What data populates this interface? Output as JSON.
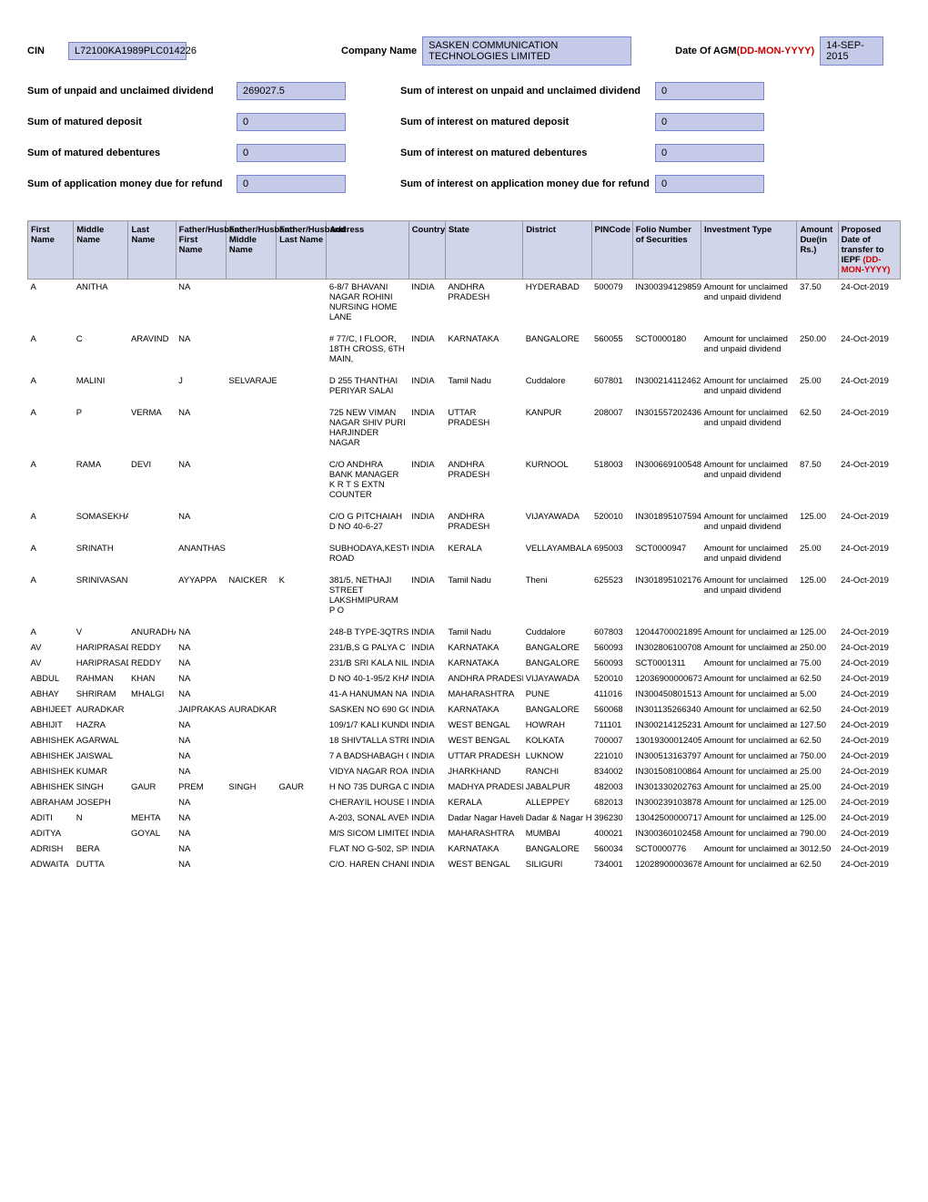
{
  "header": {
    "cin_label": "CIN",
    "cin_value": "L72100KA1989PLC014226",
    "company_label": "Company Name",
    "company_value": "SASKEN COMMUNICATION TECHNOLOGIES LIMITED",
    "agm_label": "Date Of AGM",
    "agm_hint": "(DD-MON-YYYY)",
    "agm_value": "14-SEP-2015",
    "rows": [
      {
        "left_label": "Sum of unpaid and unclaimed dividend",
        "left_value": "269027.5",
        "right_label": "Sum of interest on unpaid and unclaimed dividend",
        "right_value": "0"
      },
      {
        "left_label": "Sum of matured deposit",
        "left_value": "0",
        "right_label": "Sum of interest on matured deposit",
        "right_value": "0"
      },
      {
        "left_label": "Sum of matured debentures",
        "left_value": "0",
        "right_label": "Sum of interest on matured debentures",
        "right_value": "0"
      },
      {
        "left_label": "Sum of application money due for refund",
        "left_value": "0",
        "right_label": "Sum of interest on application money due for refund",
        "right_value": "0"
      }
    ]
  },
  "table": {
    "headers": {
      "first_name": "First Name",
      "middle_name": "Middle Name",
      "last_name": "Last Name",
      "f_first": "Father/Husband First Name",
      "f_middle": "Father/Husband Middle Name",
      "f_last": "Father/Husband Last Name",
      "address": "Address",
      "country": "Country",
      "state": "State",
      "district": "District",
      "pincode": "PINCode",
      "folio": "Folio Number of Securities",
      "invtype": "Investment Type",
      "amount": "Amount Due(in Rs.)",
      "date_main": "Proposed Date of transfer to IEPF",
      "date_hint": "(DD-MON-YYYY)"
    },
    "tall_rows": [
      {
        "fn": "A",
        "mn": "ANITHA",
        "ln": "",
        "ffn": "NA",
        "fmn": "",
        "fln": "",
        "addr": "6-8/7 BHAVANI NAGAR ROHINI NURSING HOME LANE",
        "country": "INDIA",
        "state": "ANDHRA PRADESH",
        "district": "HYDERABAD",
        "pin": "500079",
        "folio": "IN30039412985929",
        "invtype": "Amount for unclaimed and unpaid dividend",
        "amount": "37.50",
        "date": "24-Oct-2019"
      },
      {
        "fn": "A",
        "mn": "C",
        "ln": "ARAVIND",
        "ffn": "NA",
        "fmn": "",
        "fln": "",
        "addr": "# 77/C, I FLOOR, 18TH CROSS, 6TH MAIN,",
        "country": "INDIA",
        "state": "KARNATAKA",
        "district": "BANGALORE",
        "pin": "560055",
        "folio": "SCT0000180",
        "invtype": "Amount for unclaimed and unpaid dividend",
        "amount": "250.00",
        "date": "24-Oct-2019"
      },
      {
        "fn": "A",
        "mn": "MALINI",
        "ln": "",
        "ffn": "J",
        "fmn": "SELVARAJEN",
        "fln": "",
        "addr": "D 255 THANTHAI PERIYAR SALAI",
        "country": "INDIA",
        "state": "Tamil Nadu",
        "district": "Cuddalore",
        "pin": "607801",
        "folio": "IN30021411246278",
        "invtype": "Amount for unclaimed and unpaid dividend",
        "amount": "25.00",
        "date": "24-Oct-2019"
      },
      {
        "fn": "A",
        "mn": "P",
        "ln": "VERMA",
        "ffn": "NA",
        "fmn": "",
        "fln": "",
        "addr": "725 NEW VIMAN NAGAR SHIV PURI HARJINDER NAGAR",
        "country": "INDIA",
        "state": "UTTAR PRADESH",
        "district": "KANPUR",
        "pin": "208007",
        "folio": "IN30155720243601",
        "invtype": "Amount for unclaimed and unpaid dividend",
        "amount": "62.50",
        "date": "24-Oct-2019"
      },
      {
        "fn": "A",
        "mn": "RAMA",
        "ln": "DEVI",
        "ffn": "NA",
        "fmn": "",
        "fln": "",
        "addr": "C/O ANDHRA BANK MANAGER K R T S EXTN COUNTER",
        "country": "INDIA",
        "state": "ANDHRA PRADESH",
        "district": "KURNOOL",
        "pin": "518003",
        "folio": "IN30066910054815",
        "invtype": "Amount for unclaimed and unpaid dividend",
        "amount": "87.50",
        "date": "24-Oct-2019"
      },
      {
        "fn": "A",
        "mn": "SOMASEKHAR",
        "ln": "",
        "ffn": "NA",
        "fmn": "",
        "fln": "",
        "addr": "C/O G PITCHAIAH D NO 40-6-27",
        "country": "INDIA",
        "state": "ANDHRA PRADESH",
        "district": "VIJAYAWADA",
        "pin": "520010",
        "folio": "IN30189510759413",
        "invtype": "Amount for unclaimed and unpaid dividend",
        "amount": "125.00",
        "date": "24-Oct-2019"
      },
      {
        "fn": "A",
        "mn": "SRINATH",
        "ln": "",
        "ffn": "ANANTHASWAMY",
        "fmn": "",
        "fln": "",
        "addr": "SUBHODAYA,KESTON ROAD",
        "country": "INDIA",
        "state": "KERALA",
        "district": "VELLAYAMBALAM",
        "pin": "695003",
        "folio": "SCT0000947",
        "invtype": "Amount for unclaimed and unpaid dividend",
        "amount": "25.00",
        "date": "24-Oct-2019"
      },
      {
        "fn": "A",
        "mn": "SRINIVASAN",
        "ln": "",
        "ffn": "AYYAPPA",
        "fmn": "NAICKER",
        "fln": "K",
        "addr": "381/5, NETHAJI STREET LAKSHMIPURAM P O",
        "country": "INDIA",
        "state": "Tamil Nadu",
        "district": "Theni",
        "pin": "625523",
        "folio": "IN30189510217670",
        "invtype": "Amount for unclaimed and unpaid dividend",
        "amount": "125.00",
        "date": "24-Oct-2019"
      }
    ],
    "compact_rows": [
      {
        "fn": "A",
        "mn": "V",
        "ln": "ANURADHA",
        "ffn": "NA",
        "fmn": "",
        "fln": "",
        "addr": "248-B TYPE-3QTRS B",
        "country": "INDIA",
        "state": "Tamil Nadu",
        "district": "Cuddalore",
        "pin": "607803",
        "folio": "12044700021895",
        "invtype": "Amount for unclaimed an",
        "amount": "125.00",
        "date": "24-Oct-2019"
      },
      {
        "fn": "AV",
        "mn": "HARIPRASAD",
        "ln": "REDDY",
        "ffn": "NA",
        "fmn": "",
        "fln": "",
        "addr": "231/B,S G PALYA C V",
        "country": "INDIA",
        "state": "KARNATAKA",
        "district": "BANGALORE",
        "pin": "560093",
        "folio": "IN302806100708",
        "invtype": "Amount for unclaimed an",
        "amount": "250.00",
        "date": "24-Oct-2019"
      },
      {
        "fn": "AV",
        "mn": "HARIPRASAD",
        "ln": "REDDY",
        "ffn": "NA",
        "fmn": "",
        "fln": "",
        "addr": "231/B SRI KALA NILA",
        "country": "INDIA",
        "state": "KARNATAKA",
        "district": "BANGALORE",
        "pin": "560093",
        "folio": "SCT0001311",
        "invtype": "Amount for unclaimed an",
        "amount": "75.00",
        "date": "24-Oct-2019"
      },
      {
        "fn": "ABDUL",
        "mn": "RAHMAN",
        "ln": "KHAN",
        "ffn": "NA",
        "fmn": "",
        "fln": "",
        "addr": "D NO 40-1-95/2 KHA",
        "country": "INDIA",
        "state": "ANDHRA PRADESH",
        "district": "VIJAYAWADA",
        "pin": "520010",
        "folio": "12036900000673",
        "invtype": "Amount for unclaimed an",
        "amount": "62.50",
        "date": "24-Oct-2019"
      },
      {
        "fn": "ABHAY",
        "mn": "SHRIRAM",
        "ln": "MHALGI",
        "ffn": "NA",
        "fmn": "",
        "fln": "",
        "addr": "41-A HANUMAN NA",
        "country": "INDIA",
        "state": "MAHARASHTRA",
        "district": "PUNE",
        "pin": "411016",
        "folio": "IN300450801513",
        "invtype": "Amount for unclaimed an",
        "amount": "5.00",
        "date": "24-Oct-2019"
      },
      {
        "fn": "ABHIJEET",
        "mn": "AURADKAR",
        "ln": "",
        "ffn": "JAIPRAKASH",
        "fmn": "AURADKAR",
        "fln": "",
        "addr": "SASKEN NO 690 GOL",
        "country": "INDIA",
        "state": "KARNATAKA",
        "district": "BANGALORE",
        "pin": "560068",
        "folio": "IN301135266340",
        "invtype": "Amount for unclaimed an",
        "amount": "62.50",
        "date": "24-Oct-2019"
      },
      {
        "fn": "ABHIJIT",
        "mn": "HAZRA",
        "ln": "",
        "ffn": "NA",
        "fmn": "",
        "fln": "",
        "addr": "109/1/7 KALI KUNDU",
        "country": "INDIA",
        "state": "WEST BENGAL",
        "district": "HOWRAH",
        "pin": "711101",
        "folio": "IN300214125231",
        "invtype": "Amount for unclaimed an",
        "amount": "127.50",
        "date": "24-Oct-2019"
      },
      {
        "fn": "ABHISHEK",
        "mn": "AGARWAL",
        "ln": "",
        "ffn": "NA",
        "fmn": "",
        "fln": "",
        "addr": "18 SHIVTALLA STREE",
        "country": "INDIA",
        "state": "WEST BENGAL",
        "district": "KOLKATA",
        "pin": "700007",
        "folio": "13019300012405",
        "invtype": "Amount for unclaimed an",
        "amount": "62.50",
        "date": "24-Oct-2019"
      },
      {
        "fn": "ABHISHEK",
        "mn": "JAISWAL",
        "ln": "",
        "ffn": "NA",
        "fmn": "",
        "fln": "",
        "addr": "7 A BADSHABAGH C",
        "country": "INDIA",
        "state": "UTTAR PRADESH",
        "district": "LUKNOW",
        "pin": "221010",
        "folio": "IN300513163797",
        "invtype": "Amount for unclaimed an",
        "amount": "750.00",
        "date": "24-Oct-2019"
      },
      {
        "fn": "ABHISHEK",
        "mn": "KUMAR",
        "ln": "",
        "ffn": "NA",
        "fmn": "",
        "fln": "",
        "addr": "VIDYA NAGAR ROAD",
        "country": "INDIA",
        "state": "JHARKHAND",
        "district": "RANCHI",
        "pin": "834002",
        "folio": "IN301508100864",
        "invtype": "Amount for unclaimed an",
        "amount": "25.00",
        "date": "24-Oct-2019"
      },
      {
        "fn": "ABHISHEK",
        "mn": "SINGH",
        "ln": "GAUR",
        "ffn": "PREM",
        "fmn": "SINGH",
        "fln": "GAUR",
        "addr": "H NO 735 DURGA CO",
        "country": "INDIA",
        "state": "MADHYA PRADESH",
        "district": "JABALPUR",
        "pin": "482003",
        "folio": "IN301330202763",
        "invtype": "Amount for unclaimed an",
        "amount": "25.00",
        "date": "24-Oct-2019"
      },
      {
        "fn": "ABRAHAM",
        "mn": "JOSEPH",
        "ln": "",
        "ffn": "NA",
        "fmn": "",
        "fln": "",
        "addr": "CHERAYIL HOUSE NE",
        "country": "INDIA",
        "state": "KERALA",
        "district": "ALLEPPEY",
        "pin": "682013",
        "folio": "IN300239103878",
        "invtype": "Amount for unclaimed an",
        "amount": "125.00",
        "date": "24-Oct-2019"
      },
      {
        "fn": "ADITI",
        "mn": "N",
        "ln": "MEHTA",
        "ffn": "NA",
        "fmn": "",
        "fln": "",
        "addr": "A-203, SONAL AVEN",
        "country": "INDIA",
        "state": "Dadar Nagar Haveli",
        "district": "Dadar & Nagar Haveli",
        "pin": "396230",
        "folio": "13042500000717",
        "invtype": "Amount for unclaimed an",
        "amount": "125.00",
        "date": "24-Oct-2019"
      },
      {
        "fn": "ADITYA",
        "mn": "",
        "ln": "GOYAL",
        "ffn": "NA",
        "fmn": "",
        "fln": "",
        "addr": "M/S SICOM LIMITED",
        "country": "INDIA",
        "state": "MAHARASHTRA",
        "district": "MUMBAI",
        "pin": "400021",
        "folio": "IN300360102458",
        "invtype": "Amount for unclaimed an",
        "amount": "790.00",
        "date": "24-Oct-2019"
      },
      {
        "fn": "ADRISH",
        "mn": "BERA",
        "ln": "",
        "ffn": "NA",
        "fmn": "",
        "fln": "",
        "addr": "FLAT NO G-502, SPR",
        "country": "INDIA",
        "state": "KARNATAKA",
        "district": "BANGALORE",
        "pin": "560034",
        "folio": "SCT0000776",
        "invtype": "Amount for unclaimed an",
        "amount": "3012.50",
        "date": "24-Oct-2019"
      },
      {
        "fn": "ADWAITA",
        "mn": "DUTTA",
        "ln": "",
        "ffn": "NA",
        "fmn": "",
        "fln": "",
        "addr": "C/O. HAREN CHAND",
        "country": "INDIA",
        "state": "WEST BENGAL",
        "district": "SILIGURI",
        "pin": "734001",
        "folio": "12028900003678",
        "invtype": "Amount for unclaimed an",
        "amount": "62.50",
        "date": "24-Oct-2019"
      }
    ]
  },
  "colors": {
    "input_bg": "#c5cae9",
    "input_border": "#7986cb",
    "header_bg": "#d1d5ea",
    "red": "#cc0000"
  }
}
